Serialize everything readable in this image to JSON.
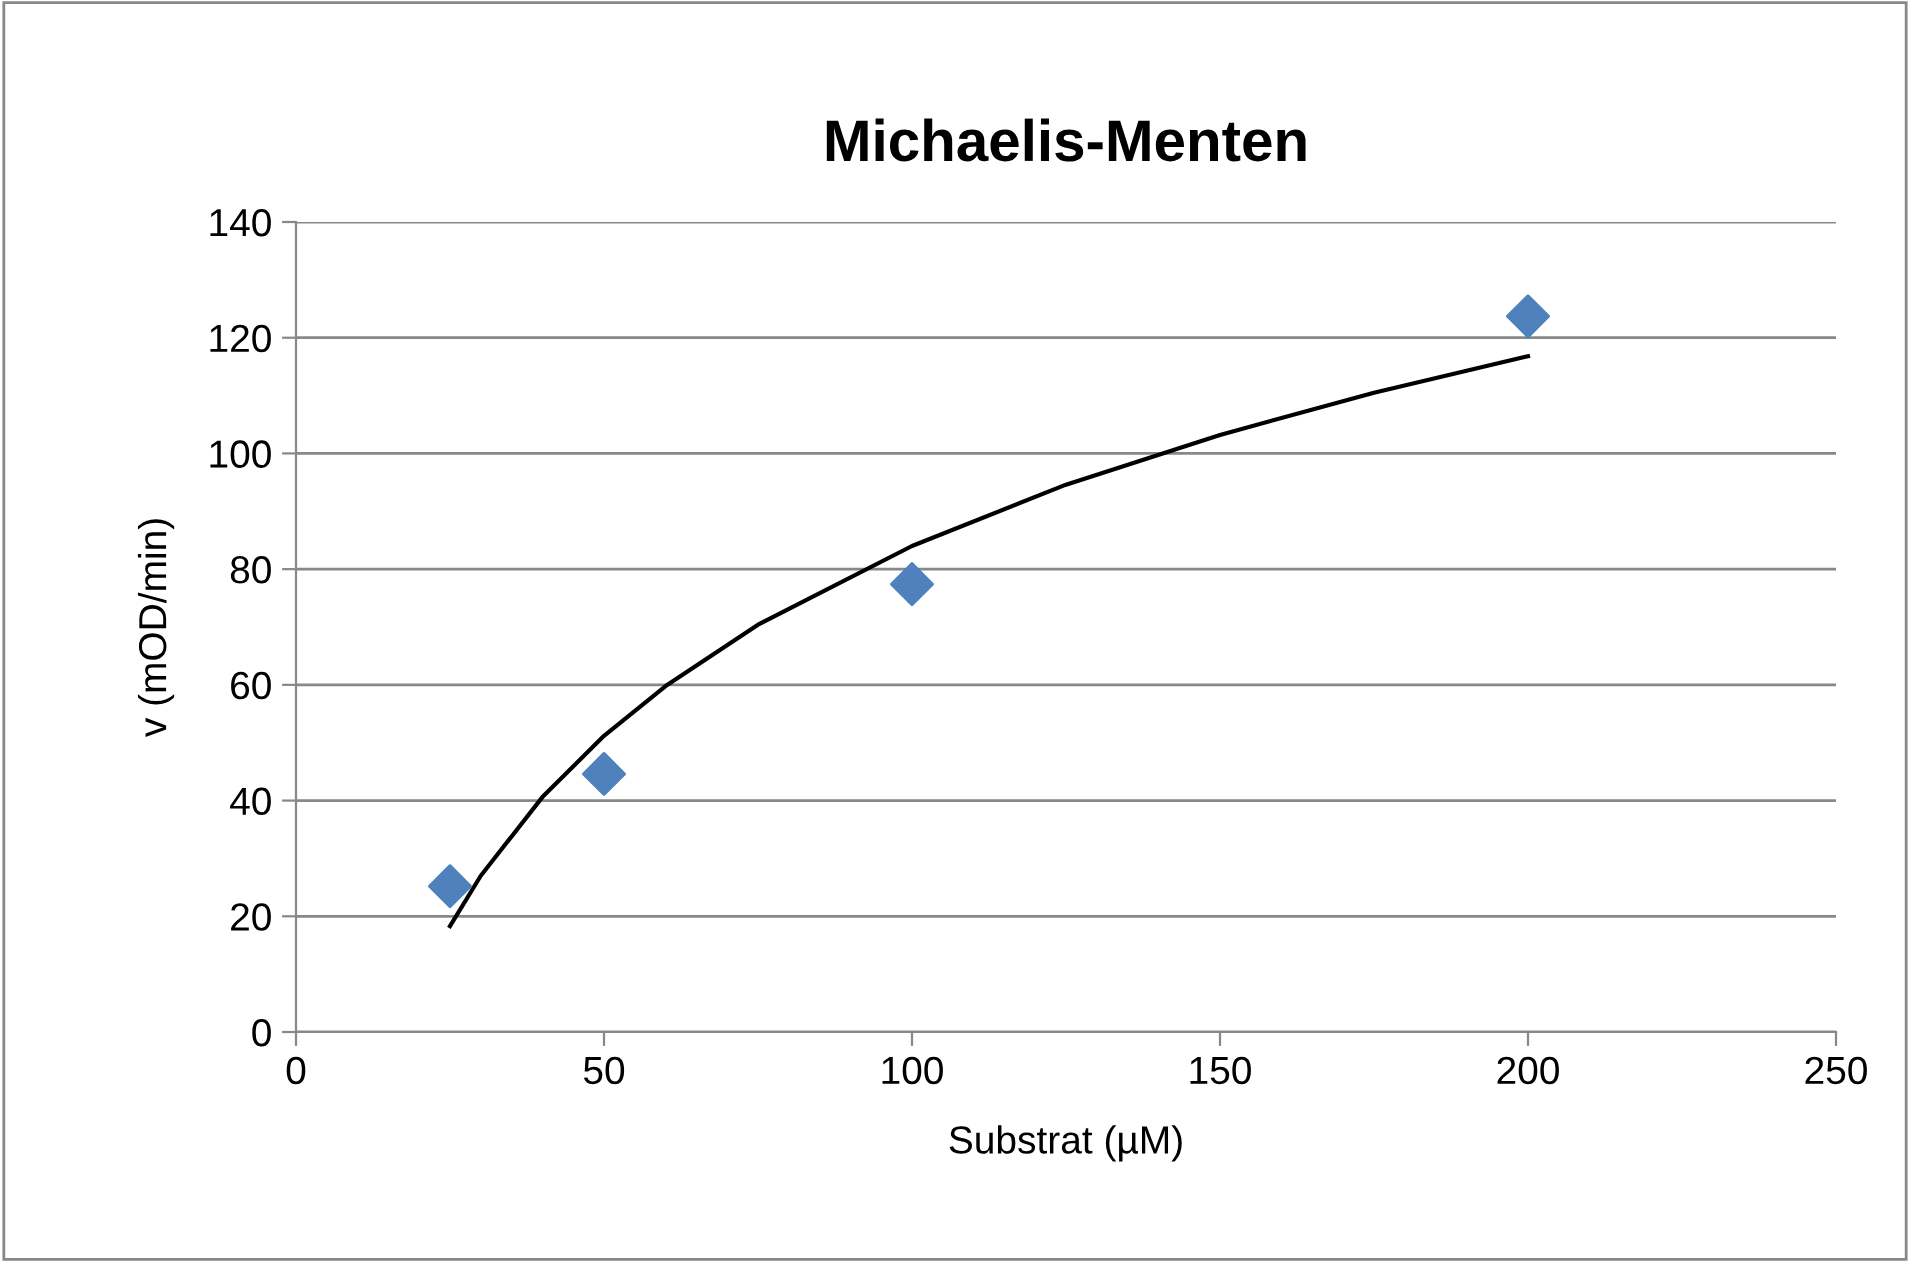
{
  "chart_data": {
    "type": "scatter",
    "title": "Michaelis-Menten",
    "xlabel": "Substrat (µM)",
    "ylabel": "v (mOD/min)",
    "xlim": [
      0,
      250
    ],
    "xticks": [
      0,
      50,
      100,
      150,
      200,
      250
    ],
    "ylim": [
      0,
      140
    ],
    "yticks": [
      0,
      20,
      40,
      60,
      80,
      100,
      120,
      140
    ],
    "grid": "y",
    "series": [
      {
        "color": "#4f81bd",
        "marker": "diamond",
        "x": [
          25,
          50,
          100,
          200
        ],
        "values": [
          25.2,
          44.6,
          77.4,
          123.7
        ]
      },
      {
        "type": "line",
        "color": "#000000",
        "marker": "none",
        "line_style": "solid",
        "x": [
          25,
          30,
          40,
          50,
          60,
          75,
          100,
          125,
          150,
          175,
          200
        ],
        "values": [
          18.3,
          27,
          40.6,
          51.2,
          59.8,
          70.4,
          84,
          94.6,
          103.2,
          110.5,
          116.8
        ]
      }
    ]
  }
}
